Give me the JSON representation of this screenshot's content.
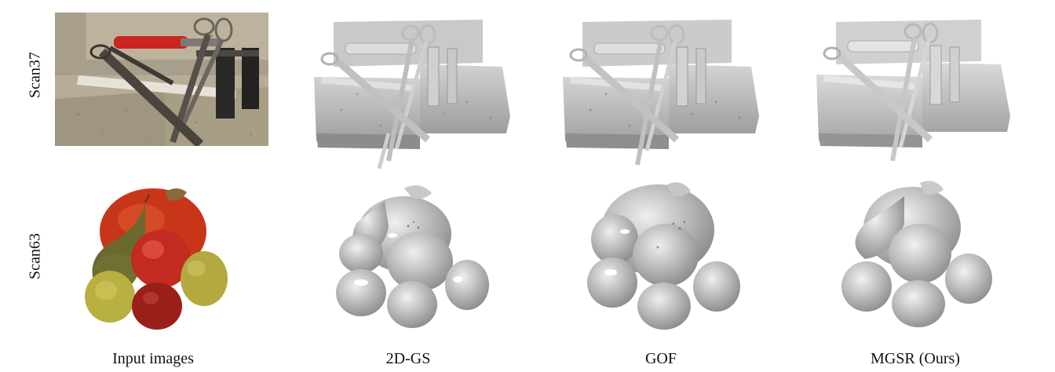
{
  "figure": {
    "rows": [
      {
        "label": "Scan37"
      },
      {
        "label": "Scan63"
      }
    ],
    "columns": [
      {
        "label": "Input images"
      },
      {
        "label": "2D-GS"
      },
      {
        "label": "GOF"
      },
      {
        "label": "MGSR (Ours)"
      }
    ]
  }
}
